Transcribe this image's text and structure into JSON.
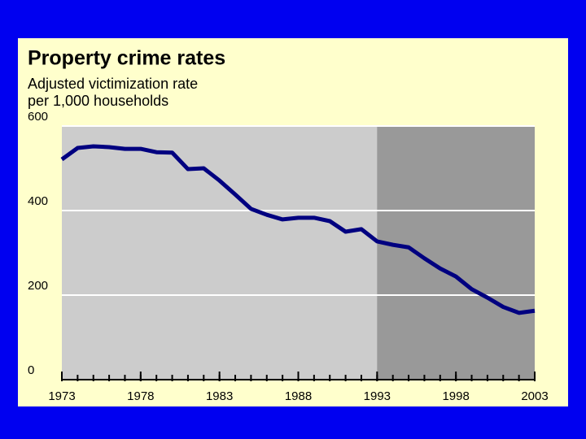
{
  "chart_data": {
    "type": "line",
    "title": "Property crime rates",
    "subtitle": [
      "Adjusted victimization rate",
      "per 1,000 households"
    ],
    "x": [
      1973,
      1974,
      1975,
      1976,
      1977,
      1978,
      1979,
      1980,
      1981,
      1982,
      1983,
      1984,
      1985,
      1986,
      1987,
      1988,
      1989,
      1990,
      1991,
      1992,
      1993,
      1994,
      1995,
      1996,
      1997,
      1998,
      1999,
      2000,
      2001,
      2002,
      2003
    ],
    "series": [
      {
        "color": "#000080",
        "values": [
          521,
          548,
          552,
          550,
          546,
          546,
          538,
          537,
          498,
          500,
          471,
          438,
          404,
          390,
          379,
          383,
          383,
          375,
          350,
          356,
          327,
          319,
          313,
          287,
          263,
          244,
          214,
          194,
          172,
          158,
          163
        ]
      }
    ],
    "xlim": [
      1973,
      2003
    ],
    "xticks": [
      1973,
      1978,
      1983,
      1988,
      1993,
      1998,
      2003
    ],
    "ylim": [
      0,
      600
    ],
    "yticks": [
      0,
      200,
      400,
      600
    ],
    "grid": true,
    "shaded_region": [
      1993,
      2003
    ],
    "plot_color": "#cccccc",
    "shaded_color": "#999999",
    "panel_color": "#ffffcc"
  }
}
